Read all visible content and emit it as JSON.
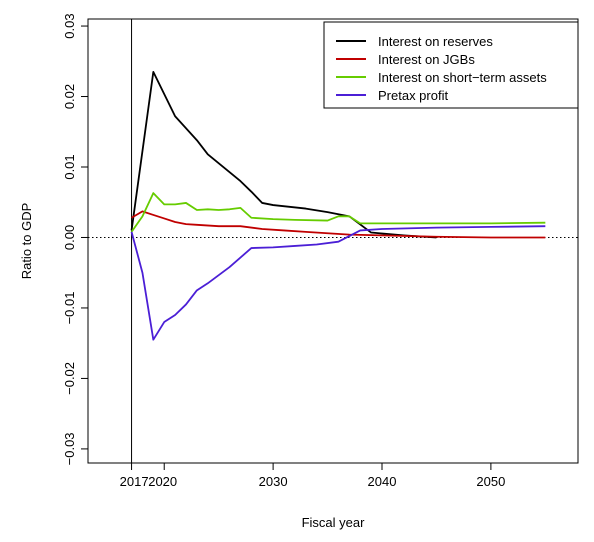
{
  "chart_data": {
    "type": "line",
    "xlabel": "Fiscal year",
    "ylabel": "Ratio to GDP",
    "xlim": [
      2013,
      2058
    ],
    "ylim": [
      -0.032,
      0.031
    ],
    "x_ticks": [
      2017,
      2020,
      2030,
      2040,
      2050
    ],
    "x_tick_labels": [
      "2017",
      "2020",
      "2030",
      "2040",
      "2050"
    ],
    "y_ticks": [
      -0.03,
      -0.02,
      -0.01,
      0.0,
      0.01,
      0.02,
      0.03
    ],
    "y_tick_labels": [
      "−0.03",
      "−0.02",
      "−0.01",
      "0.00",
      "0.01",
      "0.02",
      "0.03"
    ],
    "reference_vline_x": 2017,
    "reference_hline_y": 0.0,
    "grid": false,
    "legend_position": "top-right",
    "series": [
      {
        "name": "Interest on reserves",
        "color": "#000000",
        "x": [
          2017,
          2019,
          2021,
          2023,
          2024,
          2027,
          2028,
          2029,
          2030,
          2033,
          2035,
          2037,
          2039,
          2042,
          2045
        ],
        "y": [
          0.001,
          0.0235,
          0.0172,
          0.0138,
          0.0118,
          0.008,
          0.0065,
          0.0049,
          0.0046,
          0.0041,
          0.0036,
          0.003,
          0.0007,
          0.0003,
          0.0
        ]
      },
      {
        "name": "Interest on JGBs",
        "color": "#c00000",
        "x": [
          2017,
          2018,
          2019,
          2020,
          2021,
          2022,
          2023,
          2025,
          2027,
          2029,
          2031,
          2033,
          2035,
          2037,
          2040,
          2045,
          2050,
          2055
        ],
        "y": [
          0.0028,
          0.0037,
          0.0032,
          0.0027,
          0.0022,
          0.0019,
          0.0018,
          0.0016,
          0.0016,
          0.0012,
          0.001,
          0.0008,
          0.0006,
          0.0004,
          0.0003,
          0.0001,
          0.0,
          0.0
        ]
      },
      {
        "name": "Interest on short−term assets",
        "color": "#66cc00",
        "x": [
          2017,
          2018,
          2019,
          2020,
          2021,
          2022,
          2023,
          2024,
          2025,
          2026,
          2027,
          2028,
          2030,
          2032,
          2035,
          2036,
          2037,
          2038,
          2040,
          2045,
          2050,
          2055
        ],
        "y": [
          0.0008,
          0.003,
          0.0063,
          0.0047,
          0.0047,
          0.0049,
          0.0039,
          0.004,
          0.0039,
          0.004,
          0.0042,
          0.0028,
          0.0026,
          0.0025,
          0.0024,
          0.003,
          0.003,
          0.002,
          0.002,
          0.002,
          0.002,
          0.0021
        ]
      },
      {
        "name": "Pretax profit",
        "color": "#4b1fd6",
        "x": [
          2017,
          2018,
          2019,
          2020,
          2021,
          2022,
          2023,
          2024,
          2026,
          2028,
          2030,
          2032,
          2034,
          2036,
          2038,
          2040,
          2045,
          2050,
          2055
        ],
        "y": [
          0.0008,
          -0.005,
          -0.0145,
          -0.012,
          -0.011,
          -0.0095,
          -0.0075,
          -0.0065,
          -0.0042,
          -0.0015,
          -0.0014,
          -0.0012,
          -0.001,
          -0.0006,
          0.001,
          0.0012,
          0.0014,
          0.0015,
          0.0016
        ]
      }
    ]
  }
}
